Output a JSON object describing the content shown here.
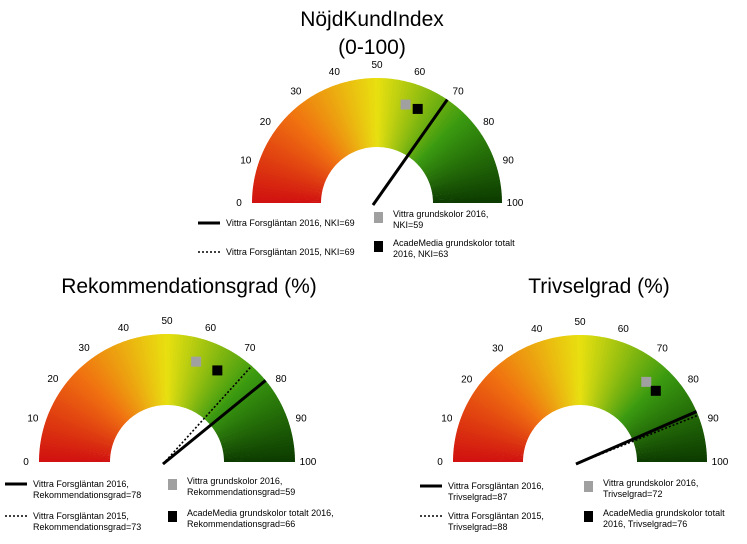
{
  "chart_data": [
    {
      "type": "gauge",
      "title_lines": [
        "NöjdKundIndex",
        "(0-100)"
      ],
      "scale": {
        "min": 0,
        "max": 100,
        "step": 10
      },
      "tick_labels": [
        "0",
        "10",
        "20",
        "30",
        "40",
        "50",
        "60",
        "70",
        "80",
        "90",
        "100"
      ],
      "color_stops": [
        "#d01010",
        "#f07010",
        "#e8e010",
        "#3a9a10",
        "#0c3a00"
      ],
      "needles": [
        {
          "name": "Vittra Forsgläntan 2016",
          "value": 69,
          "style": "solid",
          "label_lines": [
            "Vittra Forsgläntan 2016, NKI=69"
          ]
        },
        {
          "name": "Vittra Forsgläntan 2015",
          "value": 69,
          "style": "dotted",
          "label_lines": [
            "Vittra Forsgläntan 2015, NKI=69"
          ]
        }
      ],
      "markers": [
        {
          "name": "Vittra grundskolor 2016",
          "value": 59,
          "color": "#a0a0a0",
          "label_lines": [
            "Vittra grundskolor 2016,",
            "NKI=59"
          ]
        },
        {
          "name": "AcadeMedia grundskolor totalt 2016",
          "value": 63,
          "color": "#000000",
          "label_lines": [
            "AcadeMedia grundskolor totalt",
            "2016, NKI=63"
          ]
        }
      ]
    },
    {
      "type": "gauge",
      "title_lines": [
        "Rekommendationsgrad (%)"
      ],
      "scale": {
        "min": 0,
        "max": 100,
        "step": 10
      },
      "tick_labels": [
        "0",
        "10",
        "20",
        "30",
        "40",
        "50",
        "60",
        "70",
        "80",
        "90",
        "100"
      ],
      "color_stops": [
        "#d01010",
        "#f07010",
        "#e8e010",
        "#3a9a10",
        "#0c3a00"
      ],
      "needles": [
        {
          "name": "Vittra Forsgläntan 2016",
          "value": 78,
          "style": "solid",
          "label_lines": [
            "Vittra Forsgläntan 2016,",
            "Rekommendationsgrad=78"
          ]
        },
        {
          "name": "Vittra Forsgläntan 2015",
          "value": 73,
          "style": "dotted",
          "label_lines": [
            "Vittra Forsgläntan 2015,",
            "Rekommendationsgrad=73"
          ]
        }
      ],
      "markers": [
        {
          "name": "Vittra grundskolor 2016",
          "value": 59,
          "color": "#a0a0a0",
          "label_lines": [
            "Vittra grundskolor 2016,",
            "Rekommendationsgrad=59"
          ]
        },
        {
          "name": "AcadeMedia grundskolor totalt 2016",
          "value": 66,
          "color": "#000000",
          "label_lines": [
            "AcadeMedia grundskolor totalt 2016,",
            "Rekommendationsgrad=66"
          ]
        }
      ]
    },
    {
      "type": "gauge",
      "title_lines": [
        "Trivselgrad (%)"
      ],
      "scale": {
        "min": 0,
        "max": 100,
        "step": 10
      },
      "tick_labels": [
        "0",
        "10",
        "20",
        "30",
        "40",
        "50",
        "60",
        "70",
        "80",
        "90",
        "100"
      ],
      "color_stops": [
        "#d01010",
        "#f07010",
        "#e8e010",
        "#3a9a10",
        "#0c3a00"
      ],
      "needles": [
        {
          "name": "Vittra Forsgläntan 2016",
          "value": 87,
          "style": "solid",
          "label_lines": [
            "Vittra Forsgläntan 2016,",
            "Trivselgrad=87"
          ]
        },
        {
          "name": "Vittra Forsgläntan 2015",
          "value": 88,
          "style": "dotted",
          "label_lines": [
            "Vittra Forsgläntan 2015,",
            "Trivselgrad=88"
          ]
        }
      ],
      "markers": [
        {
          "name": "Vittra grundskolor 2016",
          "value": 72,
          "color": "#a0a0a0",
          "label_lines": [
            "Vittra grundskolor 2016,",
            "Trivselgrad=72"
          ]
        },
        {
          "name": "AcadeMedia grundskolor totalt 2016",
          "value": 76,
          "color": "#000000",
          "label_lines": [
            "AcadeMedia grundskolor totalt",
            "2016, Trivselgrad=76"
          ]
        }
      ]
    }
  ]
}
